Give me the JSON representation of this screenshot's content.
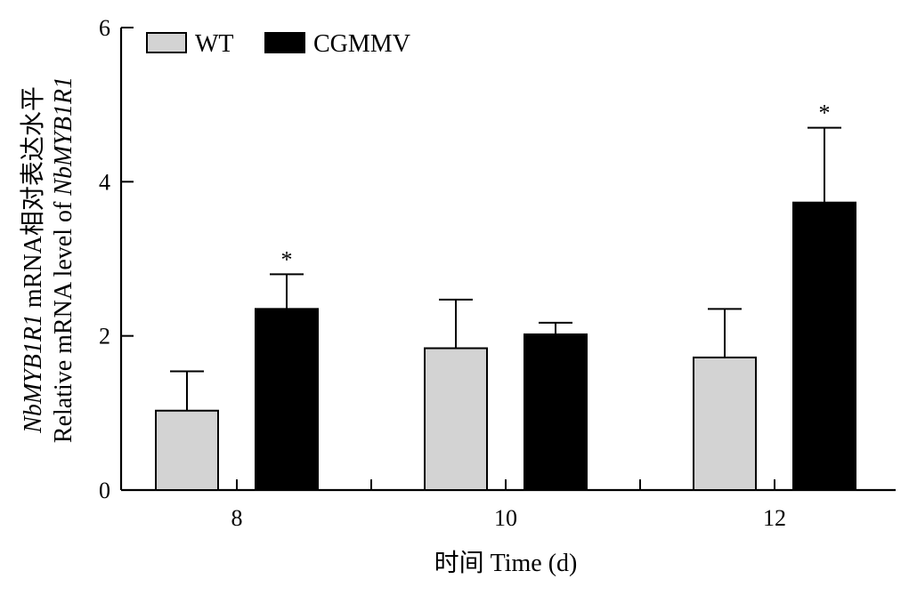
{
  "chart_data": {
    "type": "bar",
    "title": "",
    "xlabel": "时间 Time (d)",
    "ylabel_line1": {
      "gene": "NbMYB1R1",
      "rest": " mRNA相对表达水平"
    },
    "ylabel_line2": {
      "rest": "Relative mRNA level of ",
      "gene": "NbMYB1R1"
    },
    "categories": [
      "8",
      "10",
      "12"
    ],
    "yticks": [
      "0",
      "2",
      "4",
      "6"
    ],
    "ylim": [
      0,
      6
    ],
    "legend_position": "top-left",
    "series": [
      {
        "name": "WT",
        "color": "#d3d3d3",
        "values": [
          1.03,
          1.84,
          1.72
        ],
        "errors": [
          0.51,
          0.63,
          0.63
        ],
        "significance": [
          "",
          "",
          ""
        ]
      },
      {
        "name": "CGMMV",
        "color": "#000000",
        "values": [
          2.35,
          2.02,
          3.73
        ],
        "errors": [
          0.45,
          0.15,
          0.97
        ],
        "significance": [
          "*",
          "",
          "*"
        ]
      }
    ]
  }
}
